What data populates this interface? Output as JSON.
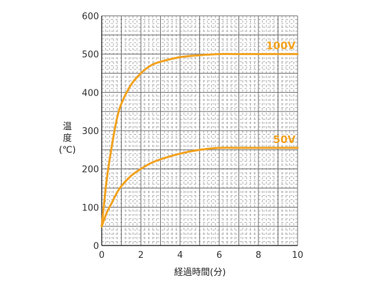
{
  "chart_data": {
    "type": "line",
    "xlabel": "経過時間(分)",
    "ylabel": [
      "温",
      "度",
      "(℃)"
    ],
    "xlim": [
      0,
      10
    ],
    "ylim": [
      0,
      600
    ],
    "x_ticks": [
      "0",
      "2",
      "4",
      "6",
      "8",
      "10"
    ],
    "y_ticks": [
      "0",
      "100",
      "200",
      "300",
      "400",
      "500",
      "600"
    ],
    "grid": true,
    "series": [
      {
        "name": "100V",
        "color": "#f2a21f",
        "x": [
          0,
          0.25,
          0.5,
          0.75,
          1,
          1.5,
          2,
          2.5,
          3,
          4,
          5,
          6,
          7,
          8,
          9,
          10
        ],
        "y": [
          50,
          170,
          255,
          325,
          370,
          420,
          450,
          470,
          480,
          492,
          497,
          500,
          500,
          500,
          500,
          500
        ]
      },
      {
        "name": "50V",
        "color": "#f2a21f",
        "x": [
          0,
          0.25,
          0.5,
          0.75,
          1,
          1.5,
          2,
          2.5,
          3,
          4,
          5,
          6,
          7,
          8,
          9,
          10
        ],
        "y": [
          50,
          85,
          110,
          135,
          155,
          182,
          200,
          215,
          225,
          240,
          250,
          255,
          255,
          255,
          255,
          255
        ]
      }
    ]
  }
}
